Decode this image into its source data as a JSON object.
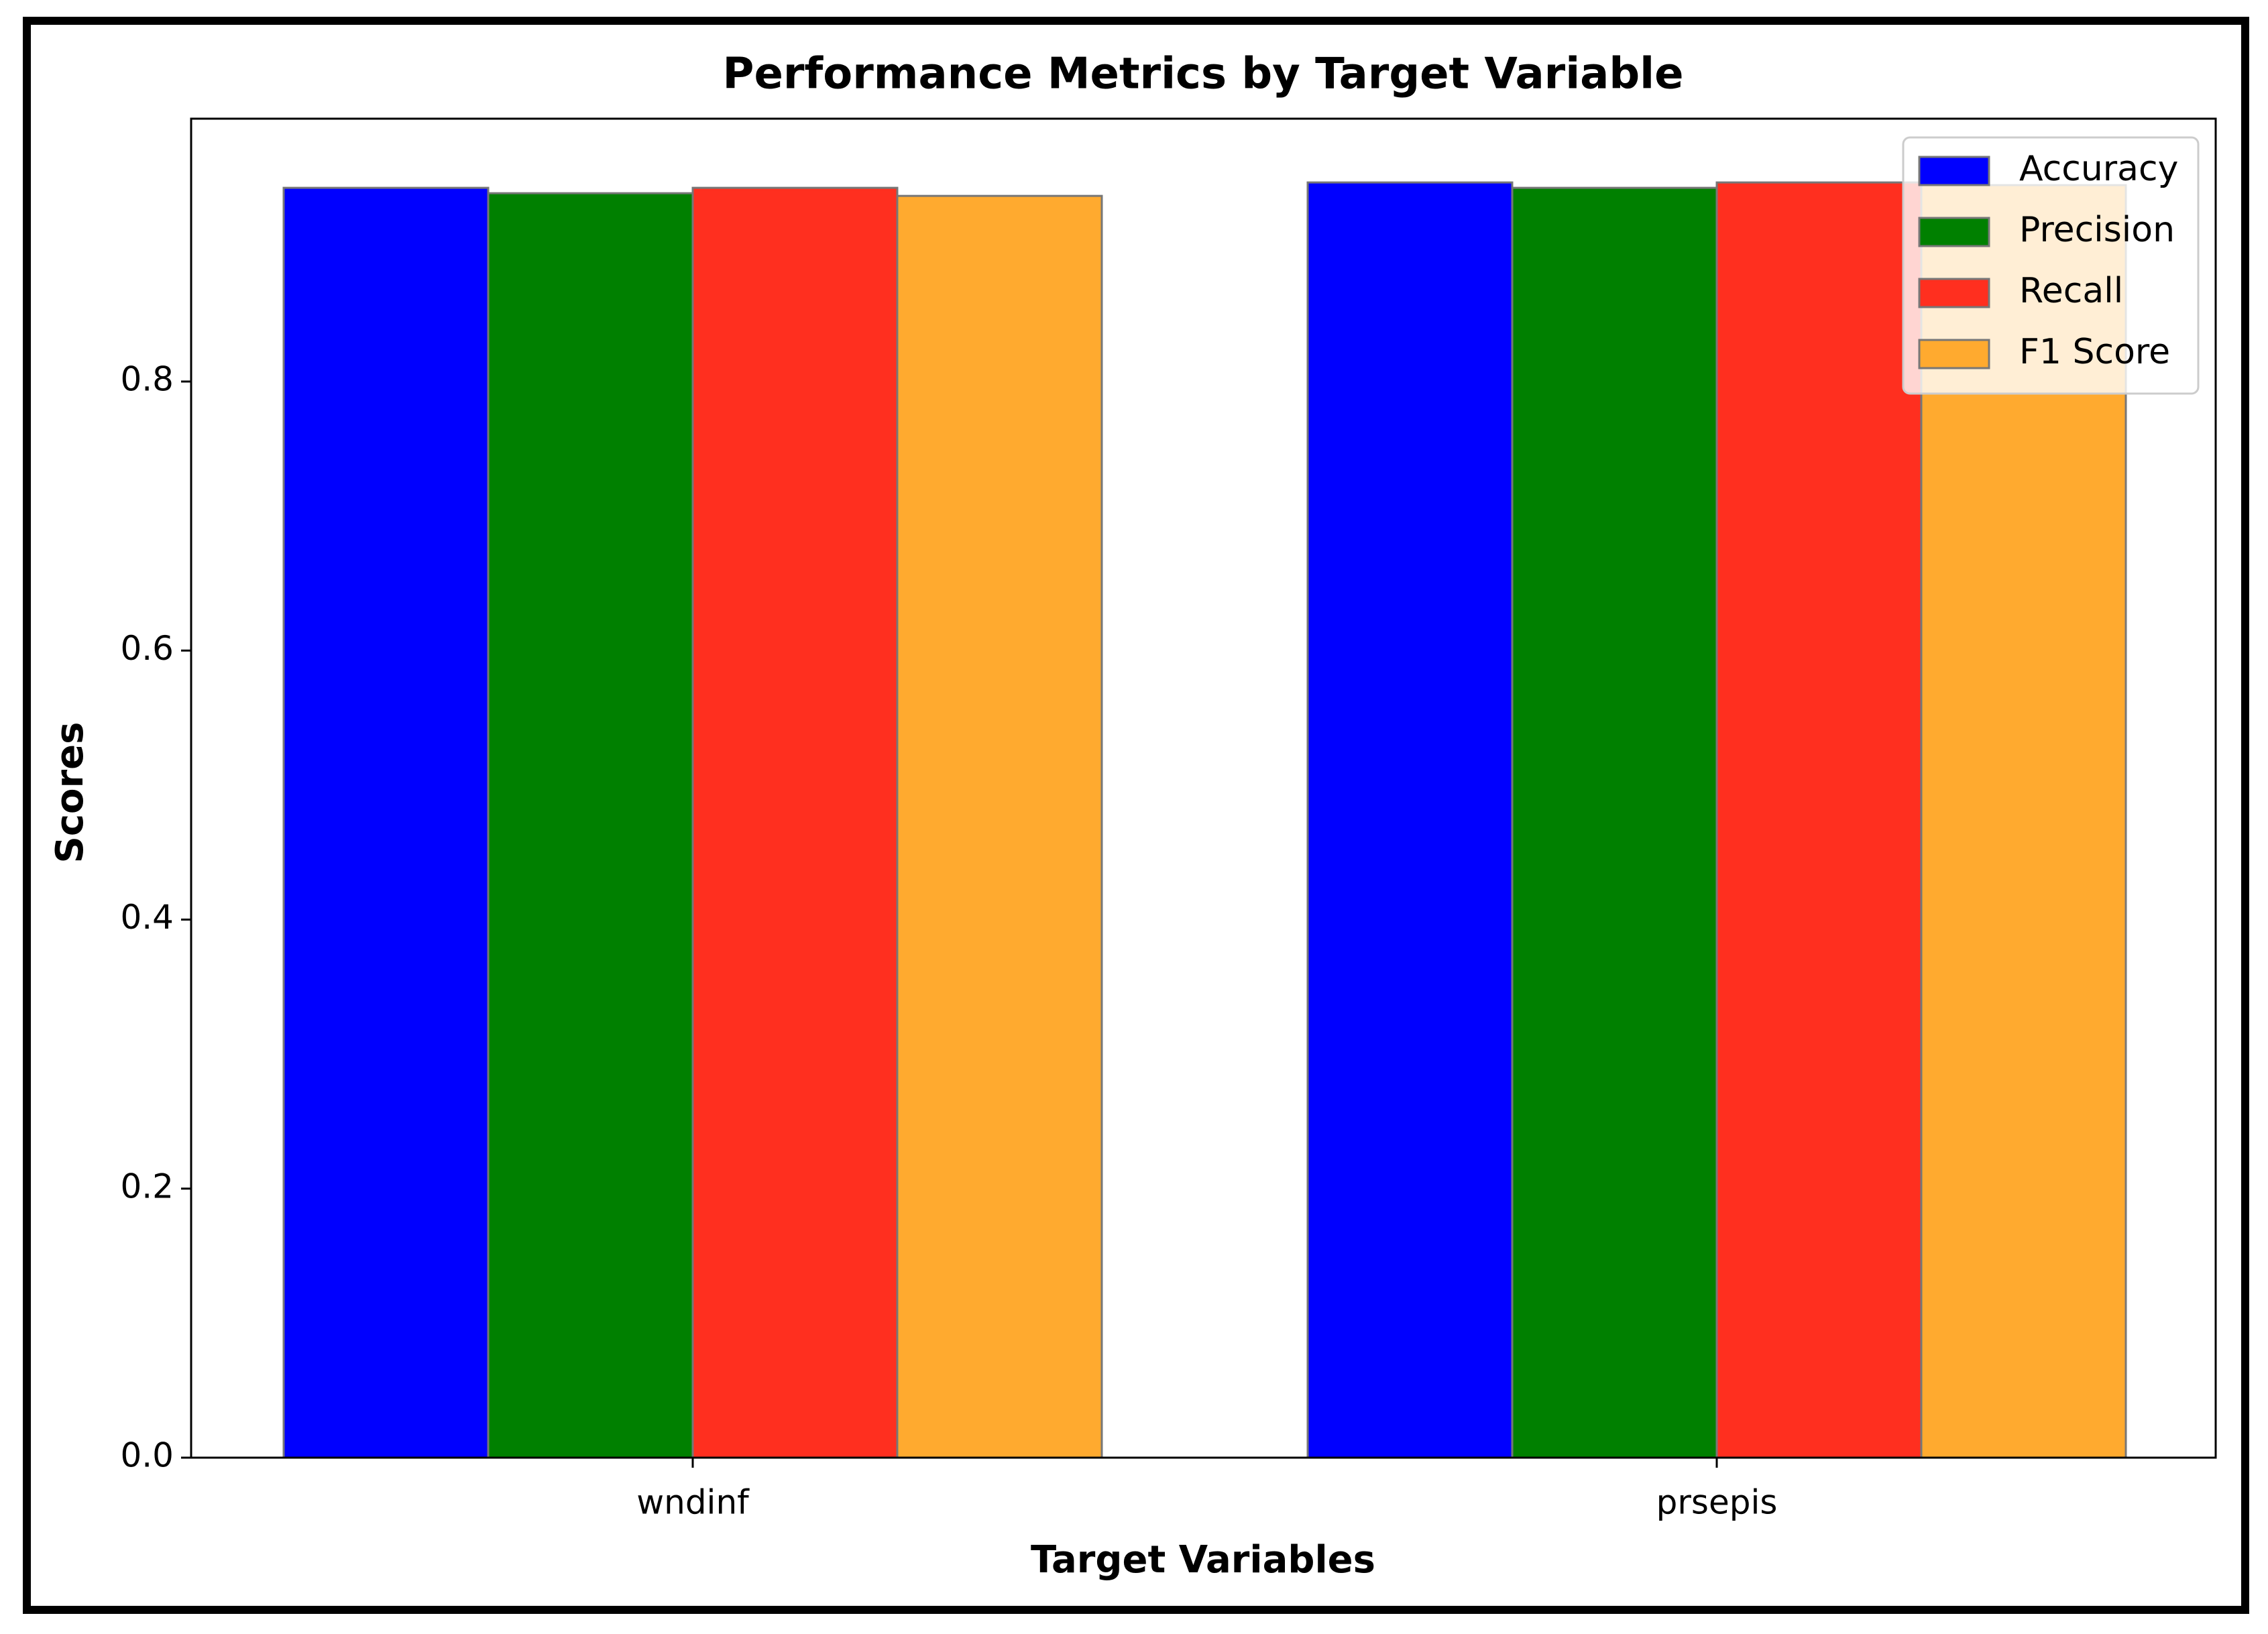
{
  "chart_data": {
    "type": "bar",
    "title": "Performance Metrics by Target Variable",
    "x_label": "Target Variables",
    "y_label": "Scores",
    "categories": [
      "wndinf",
      "prsepis"
    ],
    "series": [
      {
        "name": "Accuracy",
        "color": "#0000ff",
        "values": [
          0.944,
          0.948
        ]
      },
      {
        "name": "Precision",
        "color": "#008000",
        "values": [
          0.94,
          0.944
        ]
      },
      {
        "name": "Recall",
        "color": "#ff2f1f",
        "values": [
          0.944,
          0.948
        ]
      },
      {
        "name": "F1 Score",
        "color": "#ffaa2f",
        "values": [
          0.938,
          0.946
        ]
      }
    ],
    "ylim": [
      0,
      0.9954
    ],
    "yticks": [
      {
        "value": 0,
        "label": "0.0"
      },
      0.2,
      0.4,
      0.6,
      0.8
    ],
    "legend": "upper right"
  }
}
